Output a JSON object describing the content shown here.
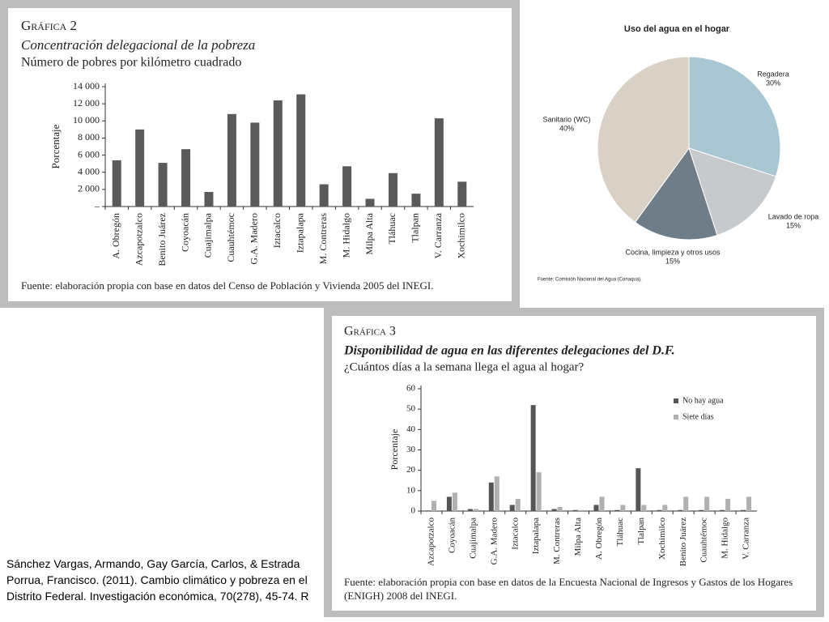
{
  "chart_data": [
    {
      "type": "bar",
      "title": "Gráfica 2",
      "subtitle": "Concentración delegacional de la pobreza",
      "subtitle2": "Número de pobres por kilómetro cuadrado",
      "y_label": "Porcentaje",
      "categories": [
        "A. Obregón",
        "Azcapotzalco",
        "Benito Juárez",
        "Coyoacán",
        "Cuajimalpa",
        "Cuauhtémoc",
        "G.A. Madero",
        "Iztacalco",
        "Iztapalapa",
        "M. Contreras",
        "M. Hidalgo",
        "Milpa Alta",
        "Tláhuac",
        "Tlalpan",
        "V. Carranza",
        "Xochimilco"
      ],
      "values": [
        5400,
        9000,
        5100,
        6700,
        1700,
        10800,
        9800,
        12400,
        13100,
        2600,
        4700,
        900,
        3900,
        1500,
        10300,
        2900
      ],
      "color": "#5a5a5a",
      "ylim": [
        0,
        14000
      ],
      "yticks": [
        {
          "value": 0,
          "label": "–"
        },
        {
          "value": 2000,
          "label": "2 000"
        },
        {
          "value": 4000,
          "label": "4 000"
        },
        {
          "value": 6000,
          "label": "6 000"
        },
        {
          "value": 8000,
          "label": "8 000"
        },
        {
          "value": 10000,
          "label": "10 000"
        },
        {
          "value": 12000,
          "label": "12 000"
        },
        {
          "value": 14000,
          "label": "14 000"
        }
      ],
      "source": "Fuente: elaboración propia con base en datos del Censo de Población y Vivienda 2005 del INEGI."
    },
    {
      "type": "pie",
      "title": "Uso del agua en el hogar",
      "categories": [
        "Regadera",
        "Lavado de ropa",
        "Cocina, limpieza y otros usos",
        "Sanitario (WC)"
      ],
      "values": [
        30,
        15,
        15,
        40
      ],
      "value_labels": [
        "30%",
        "15%",
        "15%",
        "40%"
      ],
      "colors": [
        "#a9c7d3",
        "#c7cacd",
        "#6f7d88",
        "#d9d1c5"
      ],
      "source": "Fuente: Comisión Nacional del Agua (Conaqua)."
    },
    {
      "type": "grouped_bar",
      "title": "Gráfica 3",
      "subtitle": "Disponibilidad de agua en las diferentes delegaciones del D.F.",
      "subtitle2": "¿Cuántos días a la semana llega el agua al hogar?",
      "y_label": "Porcentaje",
      "categories": [
        "Azcapotzalco",
        "Coyoacán",
        "Cuajimalpa",
        "G.A. Madero",
        "Iztacalco",
        "Iztapalapa",
        "M. Contreras",
        "Milpa Alta",
        "A. Obregón",
        "Tláhuac",
        "Tlalpan",
        "Xochimilco",
        "Benito Juárez",
        "Cuauhtémoc",
        "M. Hidalgo",
        "V. Carranza"
      ],
      "series": [
        {
          "name": "No hay agua",
          "color": "#555555",
          "values": [
            0.3,
            7,
            1,
            14,
            3,
            52,
            1,
            0.5,
            3,
            0.5,
            21,
            0.5,
            0.5,
            0.5,
            0.5,
            0.5
          ]
        },
        {
          "name": "Siete días",
          "color": "#b0b0b0",
          "values": [
            5,
            9,
            1,
            17,
            6,
            19,
            2,
            0.5,
            7,
            3,
            3,
            3,
            7,
            7,
            6,
            7
          ]
        }
      ],
      "ylim": [
        0,
        60
      ],
      "yticks": [
        0,
        10,
        20,
        30,
        40,
        50,
        60
      ],
      "source": "Fuente: elaboración propia con base en datos de la Encuesta Nacional de Ingresos y Gastos de los Hogares (ENIGH) 2008 del INEGI."
    }
  ],
  "citation": "Sánchez Vargas, Armando, Gay García, Carlos, & Estrada Porrua, Francisco. (2011). Cambio climático y pobreza en el Distrito Federal. Investigación económica, 70(278), 45-74. R"
}
